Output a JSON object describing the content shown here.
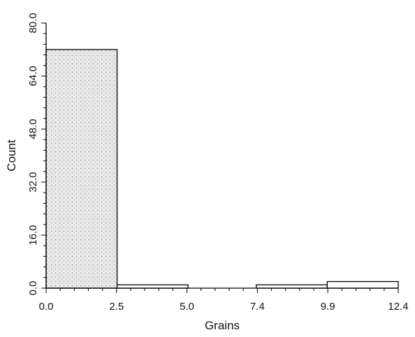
{
  "chart_data": {
    "type": "bar",
    "title": "",
    "xlabel": "Grains",
    "ylabel": "Count",
    "xlim": [
      0,
      12.4
    ],
    "ylim": [
      0,
      80
    ],
    "x_ticks": [
      "0.0",
      "2.5",
      "5.0",
      "7.4",
      "9.9",
      "12.4"
    ],
    "y_ticks": [
      "0.0",
      "16.0",
      "32.0",
      "48.0",
      "64.0",
      "80.0"
    ],
    "grid": false,
    "bins": [
      {
        "x0": 0.0,
        "x1": 2.5,
        "value": 72
      },
      {
        "x0": 2.5,
        "x1": 5.0,
        "value": 1
      },
      {
        "x0": 5.0,
        "x1": 7.4,
        "value": 0
      },
      {
        "x0": 7.4,
        "x1": 9.9,
        "value": 1
      },
      {
        "x0": 9.9,
        "x1": 12.4,
        "value": 2
      }
    ],
    "colors": {
      "bar_fill": "#cfcfcf",
      "stroke": "#000000"
    }
  }
}
